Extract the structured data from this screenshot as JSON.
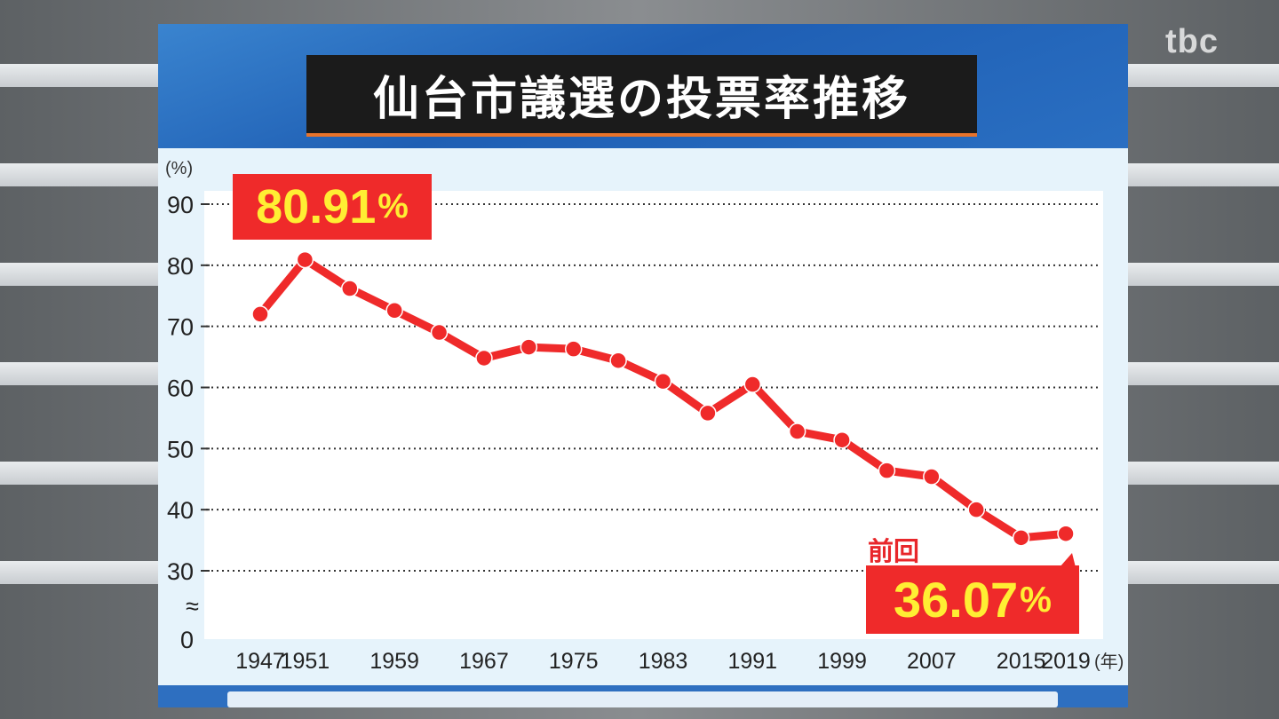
{
  "logo": "tbc",
  "title": "仙台市議選の投票率推移",
  "chart_data": {
    "type": "line",
    "title": "仙台市議選の投票率推移",
    "ylabel": "(%)",
    "xlabel": "(年)",
    "ylim": [
      0,
      90
    ],
    "axis_break": true,
    "yticks": [
      "90",
      "80",
      "70",
      "60",
      "50",
      "40",
      "30",
      "≈",
      "0"
    ],
    "xtick_labels": [
      "1947",
      "1951",
      "1959",
      "1967",
      "1975",
      "1983",
      "1991",
      "1999",
      "2007",
      "2015",
      "2019"
    ],
    "grid": true,
    "series": [
      {
        "color": "#ef2a2a",
        "x": [
          1947,
          1951,
          1955,
          1959,
          1963,
          1967,
          1971,
          1975,
          1979,
          1983,
          1987,
          1991,
          1995,
          1999,
          2003,
          2007,
          2011,
          2015,
          2019
        ],
        "y": [
          72.0,
          80.91,
          76.2,
          72.6,
          69.0,
          64.8,
          66.6,
          66.3,
          64.4,
          61.0,
          55.8,
          60.5,
          52.8,
          51.4,
          46.4,
          45.4,
          40.0,
          35.4,
          36.07
        ]
      }
    ],
    "annotations": {
      "max_label": "80.91",
      "last_label": "36.07",
      "last_note": "前回",
      "percent_sign": "%"
    }
  }
}
